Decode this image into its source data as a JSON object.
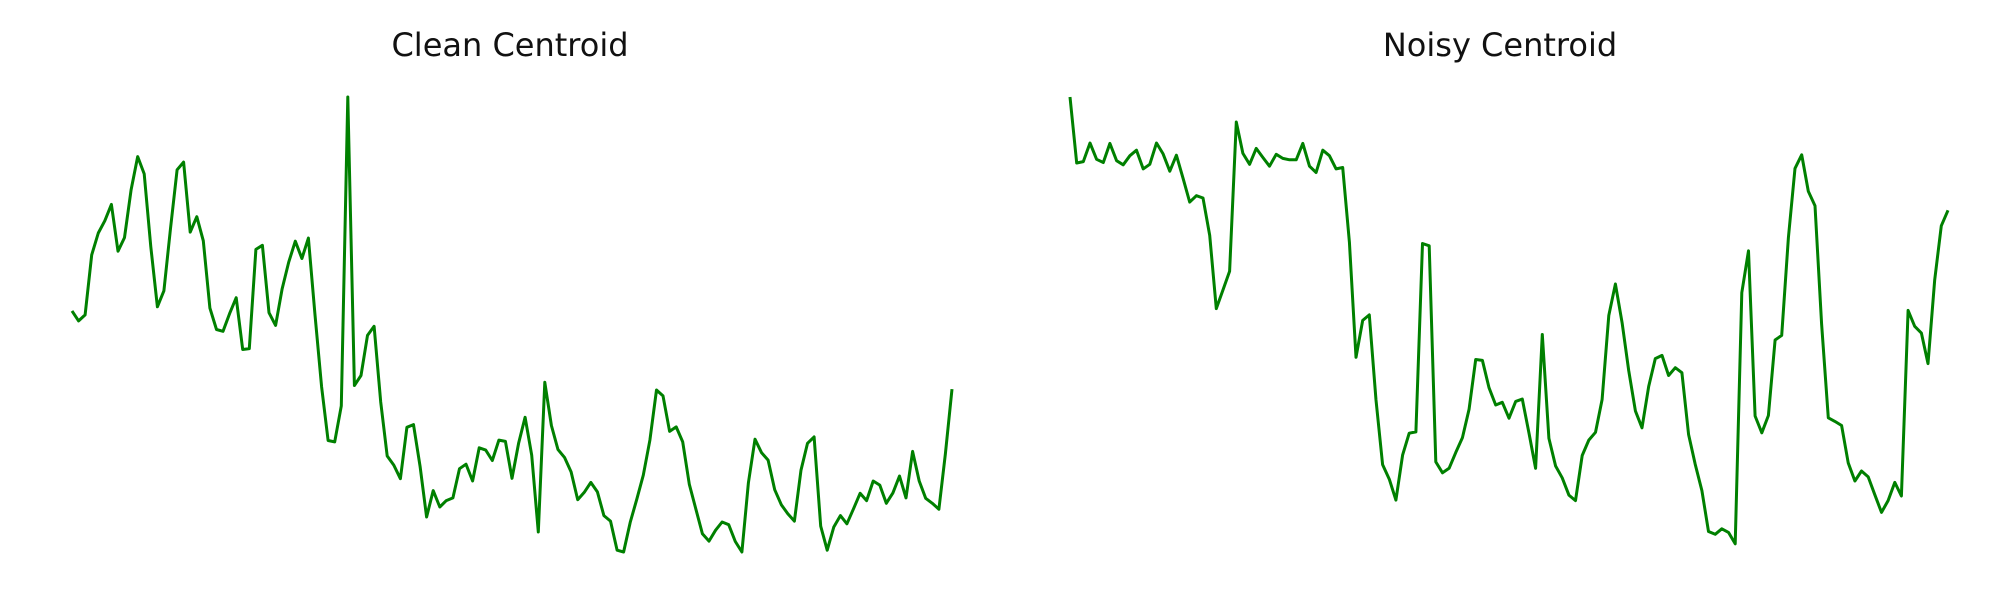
{
  "chart_data": [
    {
      "type": "line",
      "title": "Clean Centroid",
      "xlabel": "",
      "ylabel": "",
      "axes_visible": false,
      "grid": false,
      "color": "#008000",
      "values": [
        0.53,
        0.508,
        0.521,
        0.653,
        0.701,
        0.728,
        0.764,
        0.661,
        0.691,
        0.796,
        0.869,
        0.831,
        0.671,
        0.539,
        0.574,
        0.711,
        0.84,
        0.857,
        0.703,
        0.737,
        0.684,
        0.536,
        0.489,
        0.485,
        0.524,
        0.559,
        0.445,
        0.447,
        0.665,
        0.674,
        0.526,
        0.498,
        0.578,
        0.637,
        0.683,
        0.645,
        0.69,
        0.521,
        0.363,
        0.245,
        0.242,
        0.321,
        1.0,
        0.366,
        0.388,
        0.476,
        0.496,
        0.33,
        0.211,
        0.191,
        0.161,
        0.274,
        0.28,
        0.188,
        0.077,
        0.135,
        0.099,
        0.113,
        0.119,
        0.183,
        0.193,
        0.156,
        0.229,
        0.224,
        0.201,
        0.246,
        0.243,
        0.162,
        0.239,
        0.296,
        0.213,
        0.044,
        0.373,
        0.278,
        0.225,
        0.208,
        0.176,
        0.115,
        0.131,
        0.153,
        0.132,
        0.08,
        0.068,
        0.004,
        0.0,
        0.065,
        0.116,
        0.169,
        0.246,
        0.356,
        0.343,
        0.265,
        0.275,
        0.242,
        0.149,
        0.094,
        0.04,
        0.024,
        0.048,
        0.066,
        0.06,
        0.023,
        0.0,
        0.152,
        0.248,
        0.218,
        0.202,
        0.137,
        0.104,
        0.084,
        0.068,
        0.18,
        0.239,
        0.253,
        0.057,
        0.004,
        0.055,
        0.08,
        0.062,
        0.095,
        0.129,
        0.113,
        0.156,
        0.147,
        0.107,
        0.13,
        0.167,
        0.119,
        0.221,
        0.156,
        0.118,
        0.107,
        0.094,
        0.216,
        0.358
      ]
    },
    {
      "type": "line",
      "title": "Noisy Centroid",
      "xlabel": "",
      "ylabel": "",
      "axes_visible": false,
      "grid": false,
      "color": "#008000",
      "values": [
        1.0,
        0.855,
        0.858,
        0.899,
        0.863,
        0.856,
        0.898,
        0.86,
        0.851,
        0.871,
        0.883,
        0.842,
        0.852,
        0.899,
        0.875,
        0.837,
        0.872,
        0.821,
        0.769,
        0.783,
        0.778,
        0.696,
        0.535,
        0.576,
        0.617,
        0.945,
        0.876,
        0.852,
        0.887,
        0.867,
        0.848,
        0.874,
        0.865,
        0.862,
        0.862,
        0.898,
        0.848,
        0.834,
        0.883,
        0.871,
        0.842,
        0.845,
        0.681,
        0.428,
        0.509,
        0.521,
        0.334,
        0.192,
        0.16,
        0.114,
        0.213,
        0.261,
        0.264,
        0.678,
        0.673,
        0.198,
        0.174,
        0.184,
        0.219,
        0.251,
        0.314,
        0.423,
        0.421,
        0.361,
        0.323,
        0.329,
        0.294,
        0.331,
        0.336,
        0.261,
        0.184,
        0.478,
        0.25,
        0.189,
        0.163,
        0.125,
        0.113,
        0.212,
        0.246,
        0.263,
        0.335,
        0.52,
        0.589,
        0.504,
        0.399,
        0.31,
        0.273,
        0.364,
        0.425,
        0.432,
        0.388,
        0.405,
        0.394,
        0.258,
        0.193,
        0.135,
        0.045,
        0.039,
        0.051,
        0.043,
        0.018,
        0.57,
        0.662,
        0.299,
        0.262,
        0.3,
        0.466,
        0.476,
        0.691,
        0.843,
        0.873,
        0.793,
        0.761,
        0.501,
        0.295,
        0.287,
        0.278,
        0.196,
        0.156,
        0.178,
        0.165,
        0.126,
        0.087,
        0.113,
        0.153,
        0.123,
        0.531,
        0.496,
        0.481,
        0.414,
        0.598,
        0.717,
        0.751
      ]
    }
  ]
}
